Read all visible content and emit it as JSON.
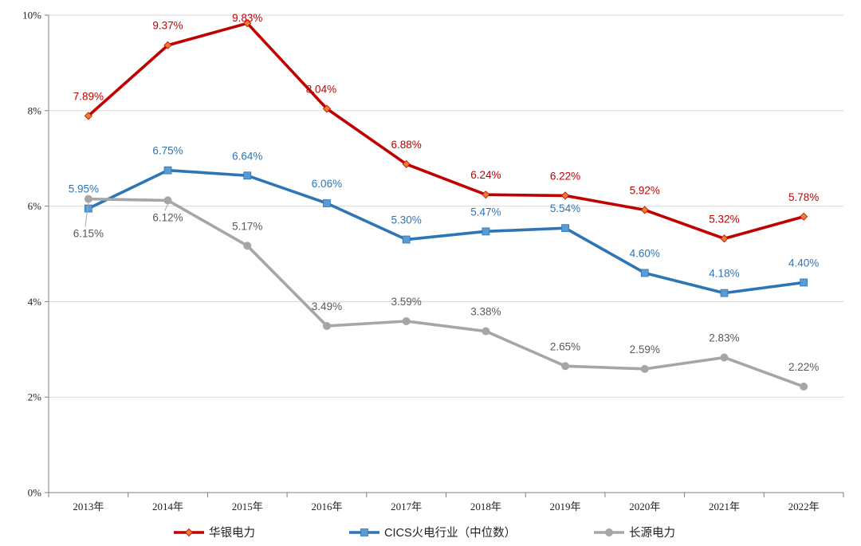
{
  "chart_data": {
    "type": "line",
    "categories": [
      "2013年",
      "2014年",
      "2015年",
      "2016年",
      "2017年",
      "2018年",
      "2019年",
      "2020年",
      "2021年",
      "2022年"
    ],
    "ylim": [
      0,
      10
    ],
    "yticks": [
      "0%",
      "2%",
      "4%",
      "6%",
      "8%",
      "10%"
    ],
    "grid": "horizontal",
    "legend_position": "bottom",
    "series": [
      {
        "name": "华银电力",
        "color": "#C00000",
        "marker": "diamond",
        "values": [
          7.89,
          9.37,
          9.83,
          8.04,
          6.88,
          6.24,
          6.22,
          5.92,
          5.32,
          5.78
        ],
        "labels": [
          "7.89%",
          "9.37%",
          "9.83%",
          "8.04%",
          "6.88%",
          "6.24%",
          "6.22%",
          "5.92%",
          "5.32%",
          "5.78%"
        ]
      },
      {
        "name": "CICS火电行业（中位数）",
        "color": "#2E75B6",
        "marker": "square",
        "values": [
          5.95,
          6.75,
          6.64,
          6.06,
          5.3,
          5.47,
          5.54,
          4.6,
          4.18,
          4.4
        ],
        "labels": [
          "5.95%",
          "6.75%",
          "6.64%",
          "6.06%",
          "5.30%",
          "5.47%",
          "5.54%",
          "4.60%",
          "4.18%",
          "4.40%"
        ]
      },
      {
        "name": "长源电力",
        "color": "#A6A6A6",
        "marker": "circle",
        "values": [
          6.15,
          6.12,
          5.17,
          3.49,
          3.59,
          3.38,
          2.65,
          2.59,
          2.83,
          2.22
        ],
        "labels": [
          "6.15%",
          "6.12%",
          "5.17%",
          "3.49%",
          "3.59%",
          "3.38%",
          "2.65%",
          "2.59%",
          "2.83%",
          "2.22%"
        ]
      }
    ]
  }
}
